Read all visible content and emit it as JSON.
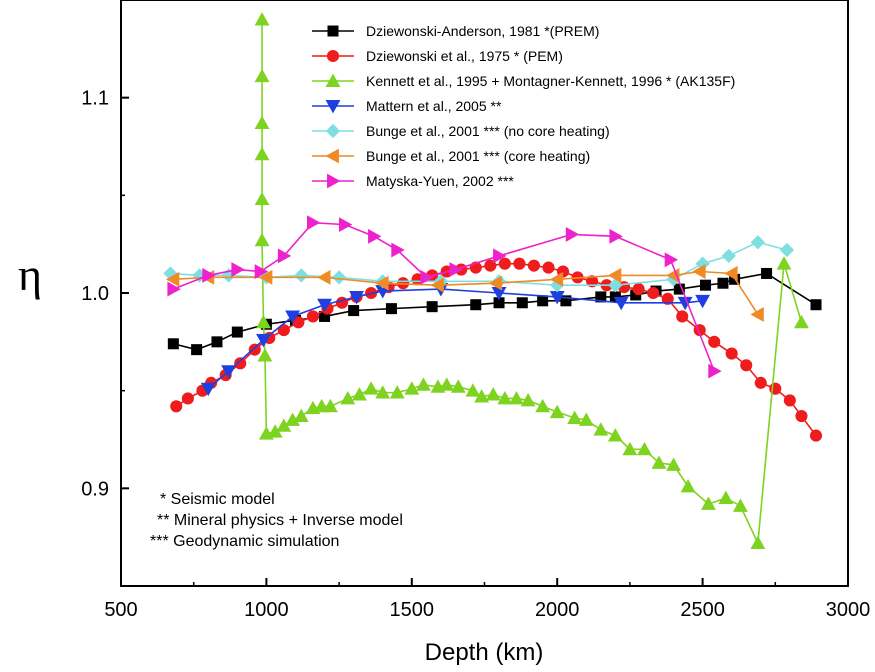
{
  "chart_data": {
    "type": "line",
    "title": "",
    "xlabel": "Depth (km)",
    "ylabel": "η",
    "xlim": [
      500,
      3000
    ],
    "ylim": [
      0.85,
      1.15
    ],
    "xticks": [
      500,
      1000,
      1500,
      2000,
      2500,
      3000
    ],
    "yticks": [
      0.9,
      1.0,
      1.1
    ],
    "ytick_labels": [
      "0.9",
      "1.0",
      "1.1"
    ],
    "grid": false,
    "legend_position": "top-right",
    "series": [
      {
        "name": "Dziewonski-Anderson, 1981 *(PREM)",
        "color": "#000000",
        "marker": "square",
        "x": [
          680,
          760,
          830,
          900,
          1000,
          1100,
          1200,
          1300,
          1430,
          1570,
          1720,
          1800,
          1880,
          1950,
          2030,
          2150,
          2200,
          2270,
          2340,
          2420,
          2510,
          2570,
          2610,
          2720,
          2890
        ],
        "y": [
          0.974,
          0.971,
          0.975,
          0.98,
          0.984,
          0.986,
          0.988,
          0.991,
          0.992,
          0.993,
          0.994,
          0.995,
          0.995,
          0.996,
          0.996,
          0.998,
          0.998,
          0.999,
          1.001,
          1.002,
          1.004,
          1.005,
          1.007,
          1.01,
          0.994
        ]
      },
      {
        "name": "Dziewonski et al., 1975 * (PEM)",
        "color": "#ee1c1c",
        "marker": "circle",
        "x": [
          690,
          730,
          780,
          810,
          860,
          910,
          960,
          1010,
          1060,
          1110,
          1160,
          1210,
          1260,
          1310,
          1360,
          1420,
          1470,
          1520,
          1570,
          1620,
          1670,
          1720,
          1770,
          1820,
          1870,
          1920,
          1970,
          2020,
          2070,
          2120,
          2170,
          2230,
          2280,
          2330,
          2380,
          2430,
          2490,
          2540,
          2600,
          2650,
          2700,
          2750,
          2800,
          2840,
          2890
        ],
        "y": [
          0.942,
          0.946,
          0.95,
          0.954,
          0.958,
          0.964,
          0.971,
          0.977,
          0.981,
          0.985,
          0.988,
          0.992,
          0.995,
          0.998,
          1.0,
          1.003,
          1.005,
          1.007,
          1.009,
          1.011,
          1.012,
          1.013,
          1.014,
          1.015,
          1.015,
          1.014,
          1.013,
          1.011,
          1.008,
          1.006,
          1.004,
          1.003,
          1.002,
          1.0,
          0.997,
          0.988,
          0.981,
          0.975,
          0.969,
          0.963,
          0.954,
          0.951,
          0.945,
          0.937,
          0.927
        ]
      },
      {
        "name": "Kennett et al., 1995 + Montagner-Kennett, 1996 * (AK135F)",
        "color": "#7ed321",
        "marker": "triangle-up",
        "x": [
          985,
          985,
          985,
          985,
          985,
          985,
          990,
          995,
          1000,
          1030,
          1060,
          1090,
          1120,
          1160,
          1190,
          1220,
          1280,
          1320,
          1360,
          1400,
          1450,
          1500,
          1540,
          1590,
          1620,
          1660,
          1710,
          1740,
          1780,
          1820,
          1860,
          1900,
          1950,
          2000,
          2060,
          2100,
          2150,
          2200,
          2250,
          2300,
          2350,
          2400,
          2450,
          2520,
          2580,
          2630,
          2690,
          2780,
          2840
        ],
        "y": [
          1.14,
          1.111,
          1.087,
          1.071,
          1.048,
          1.027,
          0.985,
          0.968,
          0.928,
          0.929,
          0.932,
          0.935,
          0.937,
          0.941,
          0.942,
          0.942,
          0.946,
          0.948,
          0.951,
          0.949,
          0.949,
          0.951,
          0.953,
          0.952,
          0.953,
          0.952,
          0.95,
          0.947,
          0.948,
          0.946,
          0.946,
          0.945,
          0.942,
          0.939,
          0.936,
          0.935,
          0.93,
          0.927,
          0.92,
          0.92,
          0.913,
          0.912,
          0.901,
          0.892,
          0.895,
          0.891,
          0.872,
          1.015,
          0.985
        ]
      },
      {
        "name": "Mattern et al., 2005 **",
        "color": "#1f3fe0",
        "marker": "triangle-down",
        "x": [
          800,
          870,
          990,
          1090,
          1200,
          1310,
          1400,
          1600,
          1800,
          2000,
          2220,
          2440,
          2500
        ],
        "y": [
          0.951,
          0.96,
          0.976,
          0.988,
          0.994,
          0.998,
          1.001,
          1.002,
          1.0,
          0.998,
          0.995,
          0.995,
          0.996
        ]
      },
      {
        "name": "Bunge et al., 2001 *** (no core heating)",
        "color": "#7fdfe0",
        "marker": "diamond",
        "x": [
          670,
          770,
          870,
          1000,
          1120,
          1250,
          1400,
          1600,
          1800,
          2000,
          2200,
          2400,
          2500,
          2590,
          2690,
          2790
        ],
        "y": [
          1.01,
          1.009,
          1.009,
          1.008,
          1.009,
          1.008,
          1.006,
          1.006,
          1.006,
          1.004,
          1.004,
          1.007,
          1.015,
          1.019,
          1.026,
          1.022
        ]
      },
      {
        "name": "Bunge et al., 2001 *** (core heating)",
        "color": "#f08a24",
        "marker": "triangle-left",
        "x": [
          680,
          800,
          1000,
          1200,
          1400,
          1590,
          1790,
          2000,
          2200,
          2400,
          2490,
          2600,
          2690
        ],
        "y": [
          1.007,
          1.008,
          1.008,
          1.008,
          1.005,
          1.004,
          1.005,
          1.007,
          1.009,
          1.009,
          1.011,
          1.01,
          0.989
        ]
      },
      {
        "name": "Matyska-Yuen, 2002 ***",
        "color": "#ee22cc",
        "marker": "triangle-right",
        "x": [
          680,
          800,
          900,
          980,
          1060,
          1160,
          1270,
          1370,
          1450,
          1550,
          1650,
          1800,
          2050,
          2200,
          2390,
          2540
        ],
        "y": [
          1.002,
          1.009,
          1.012,
          1.011,
          1.019,
          1.036,
          1.035,
          1.029,
          1.022,
          1.008,
          1.012,
          1.019,
          1.03,
          1.029,
          1.017,
          0.96
        ]
      }
    ],
    "annotations": [
      "* Seismic model",
      "** Mineral physics + Inverse model",
      "*** Geodynamic simulation"
    ]
  }
}
